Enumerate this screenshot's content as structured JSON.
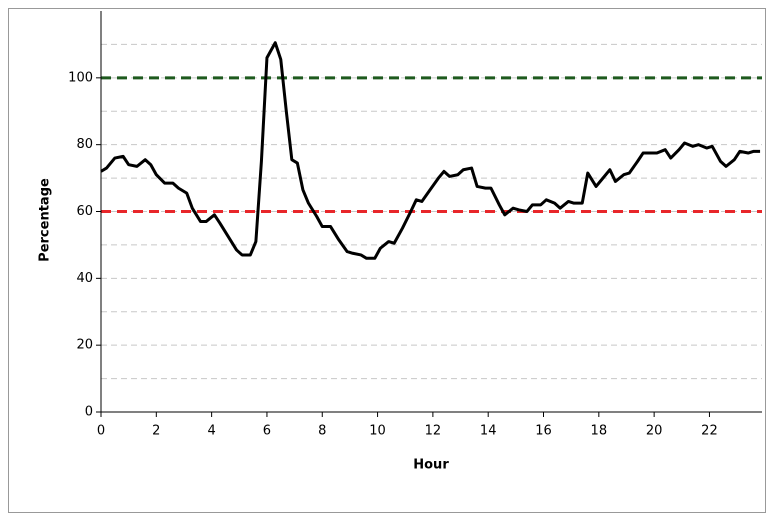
{
  "chart_data": {
    "type": "line",
    "xlabel": "Hour",
    "ylabel": "Percentage",
    "x": [
      0,
      0.2,
      0.5,
      0.8,
      1.0,
      1.3,
      1.6,
      1.8,
      2.0,
      2.3,
      2.6,
      2.8,
      3.1,
      3.3,
      3.6,
      3.8,
      4.1,
      4.3,
      4.6,
      4.9,
      5.1,
      5.4,
      5.6,
      5.8,
      6.0,
      6.3,
      6.5,
      6.7,
      6.9,
      7.1,
      7.3,
      7.5,
      7.8,
      8.0,
      8.3,
      8.6,
      8.9,
      9.1,
      9.4,
      9.6,
      9.9,
      10.1,
      10.4,
      10.6,
      10.9,
      11.2,
      11.4,
      11.6,
      11.9,
      12.2,
      12.4,
      12.6,
      12.9,
      13.1,
      13.4,
      13.6,
      13.9,
      14.1,
      14.4,
      14.6,
      14.9,
      15.1,
      15.4,
      15.6,
      15.9,
      16.1,
      16.4,
      16.6,
      16.9,
      17.1,
      17.4,
      17.6,
      17.9,
      18.1,
      18.4,
      18.6,
      18.9,
      19.1,
      19.4,
      19.6,
      19.9,
      20.1,
      20.4,
      20.6,
      20.9,
      21.1,
      21.4,
      21.6,
      21.9,
      22.1,
      22.4,
      22.6,
      22.9,
      23.1,
      23.4,
      23.6,
      23.83
    ],
    "series": [
      {
        "color": "#000000",
        "values": [
          72,
          73,
          76,
          76.5,
          74,
          73.5,
          75.5,
          74,
          71,
          68.5,
          68.5,
          67,
          65.5,
          61,
          57,
          57,
          59,
          56.5,
          52.5,
          48.5,
          47,
          47,
          51,
          75,
          106,
          110.5,
          105.5,
          90,
          75.5,
          74.5,
          66.5,
          62.5,
          58.5,
          55.5,
          55.5,
          51.5,
          48,
          47.5,
          47,
          46,
          46,
          49,
          51,
          50.5,
          55,
          60,
          63.5,
          63,
          66.5,
          70,
          72,
          70.5,
          71,
          72.5,
          73,
          67.5,
          67,
          67,
          62,
          59,
          61,
          60.5,
          60,
          62,
          62,
          63.5,
          62.5,
          61,
          63,
          62.5,
          62.5,
          71.5,
          67.5,
          69.5,
          72.5,
          69,
          71,
          71.5,
          75,
          77.5,
          77.5,
          77.5,
          78.5,
          76,
          78.5,
          80.5,
          79.5,
          80,
          79,
          79.5,
          75,
          73.5,
          75.5,
          78,
          77.5,
          78,
          78
        ]
      }
    ],
    "reference_lines": [
      {
        "value": 100,
        "color": "#1e5a1e"
      },
      {
        "value": 60,
        "color": "#e8262a"
      }
    ],
    "xlim": [
      0,
      23.9
    ],
    "ylim": [
      0,
      120
    ],
    "xticks": [
      0,
      2,
      4,
      6,
      8,
      10,
      12,
      14,
      16,
      18,
      20,
      22
    ],
    "yticks": [
      0,
      20,
      40,
      60,
      80,
      100
    ],
    "minor_yticks": [
      10,
      30,
      50,
      70,
      90,
      110
    ],
    "grid": true
  }
}
